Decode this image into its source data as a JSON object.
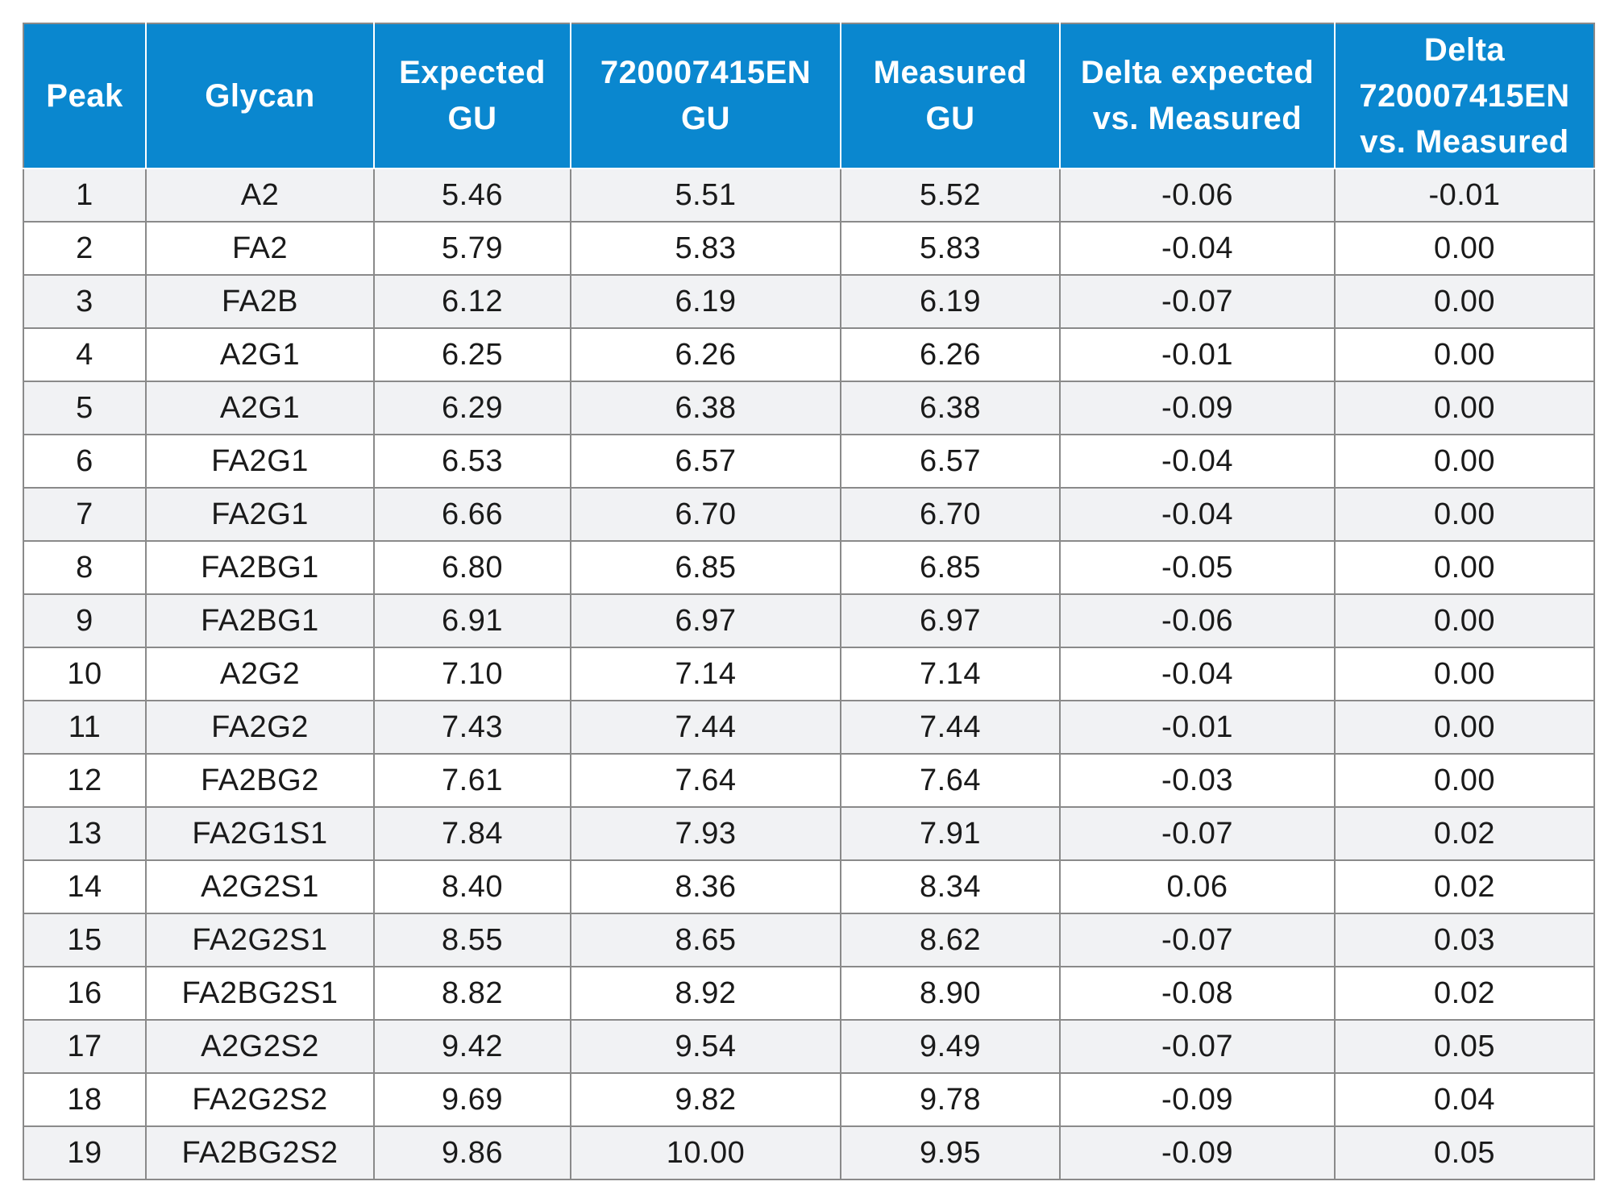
{
  "table": {
    "headers": [
      [
        "Peak"
      ],
      [
        "Glycan"
      ],
      [
        "Expected",
        "GU"
      ],
      [
        "720007415EN",
        "GU"
      ],
      [
        "Measured",
        "GU"
      ],
      [
        "Delta expected",
        "vs. Measured"
      ],
      [
        "Delta",
        "720007415EN",
        "vs. Measured"
      ]
    ],
    "rows": [
      [
        "1",
        "A2",
        "5.46",
        "5.51",
        "5.52",
        "-0.06",
        "-0.01"
      ],
      [
        "2",
        "FA2",
        "5.79",
        "5.83",
        "5.83",
        "-0.04",
        "0.00"
      ],
      [
        "3",
        "FA2B",
        "6.12",
        "6.19",
        "6.19",
        "-0.07",
        "0.00"
      ],
      [
        "4",
        "A2G1",
        "6.25",
        "6.26",
        "6.26",
        "-0.01",
        "0.00"
      ],
      [
        "5",
        "A2G1",
        "6.29",
        "6.38",
        "6.38",
        "-0.09",
        "0.00"
      ],
      [
        "6",
        "FA2G1",
        "6.53",
        "6.57",
        "6.57",
        "-0.04",
        "0.00"
      ],
      [
        "7",
        "FA2G1",
        "6.66",
        "6.70",
        "6.70",
        "-0.04",
        "0.00"
      ],
      [
        "8",
        "FA2BG1",
        "6.80",
        "6.85",
        "6.85",
        "-0.05",
        "0.00"
      ],
      [
        "9",
        "FA2BG1",
        "6.91",
        "6.97",
        "6.97",
        "-0.06",
        "0.00"
      ],
      [
        "10",
        "A2G2",
        "7.10",
        "7.14",
        "7.14",
        "-0.04",
        "0.00"
      ],
      [
        "11",
        "FA2G2",
        "7.43",
        "7.44",
        "7.44",
        "-0.01",
        "0.00"
      ],
      [
        "12",
        "FA2BG2",
        "7.61",
        "7.64",
        "7.64",
        "-0.03",
        "0.00"
      ],
      [
        "13",
        "FA2G1S1",
        "7.84",
        "7.93",
        "7.91",
        "-0.07",
        "0.02"
      ],
      [
        "14",
        "A2G2S1",
        "8.40",
        "8.36",
        "8.34",
        "0.06",
        "0.02"
      ],
      [
        "15",
        "FA2G2S1",
        "8.55",
        "8.65",
        "8.62",
        "-0.07",
        "0.03"
      ],
      [
        "16",
        "FA2BG2S1",
        "8.82",
        "8.92",
        "8.90",
        "-0.08",
        "0.02"
      ],
      [
        "17",
        "A2G2S2",
        "9.42",
        "9.54",
        "9.49",
        "-0.07",
        "0.05"
      ],
      [
        "18",
        "FA2G2S2",
        "9.69",
        "9.82",
        "9.78",
        "-0.09",
        "0.04"
      ],
      [
        "19",
        "FA2BG2S2",
        "9.86",
        "10.00",
        "9.95",
        "-0.09",
        "0.05"
      ]
    ]
  },
  "colors": {
    "header_background": "#0a87cf",
    "header_text": "#ffffff",
    "stripe_row": "#f1f2f4",
    "plain_row": "#ffffff",
    "grid_line": "#8a8a8a"
  }
}
